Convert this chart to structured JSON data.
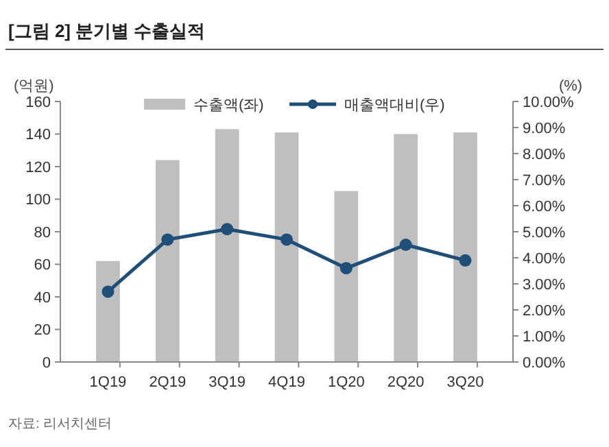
{
  "chart_data": {
    "type": "bar",
    "title": "[그림 2] 분기별 수출실적",
    "ylabel": "(억원)",
    "y2label": "(%)",
    "categories": [
      "1Q19",
      "2Q19",
      "3Q19",
      "4Q19",
      "1Q20",
      "2Q20",
      "3Q20"
    ],
    "series": [
      {
        "name": "수출액(좌)",
        "color": "#bfbfbf",
        "values": [
          62,
          124,
          143,
          141,
          105,
          140,
          141
        ]
      },
      {
        "name": "매출액대비(우)",
        "type": "line",
        "axis": "y2",
        "color": "#1f4e79",
        "marker": "circle",
        "values": [
          2.7,
          4.7,
          5.1,
          4.7,
          3.6,
          4.5,
          3.9
        ]
      }
    ],
    "ylim": [
      0,
      160
    ],
    "yticks": [
      0,
      20,
      40,
      60,
      80,
      100,
      120,
      140,
      160
    ],
    "y2lim": [
      0,
      10
    ],
    "y2ticks": [
      {
        "value": 0,
        "label": "0.00%"
      },
      {
        "value": 1,
        "label": "1.00%"
      },
      {
        "value": 2,
        "label": "2.00%"
      },
      {
        "value": 3,
        "label": "3.00%"
      },
      {
        "value": 4,
        "label": "4.00%"
      },
      {
        "value": 5,
        "label": "5.00%"
      },
      {
        "value": 6,
        "label": "6.00%"
      },
      {
        "value": 7,
        "label": "7.00%"
      },
      {
        "value": 8,
        "label": "8.00%"
      },
      {
        "value": 9,
        "label": "9.00%"
      },
      {
        "value": 10,
        "label": "10.00%"
      }
    ],
    "legend": "top",
    "annotations": [
      "자료: 리서치센터"
    ]
  }
}
